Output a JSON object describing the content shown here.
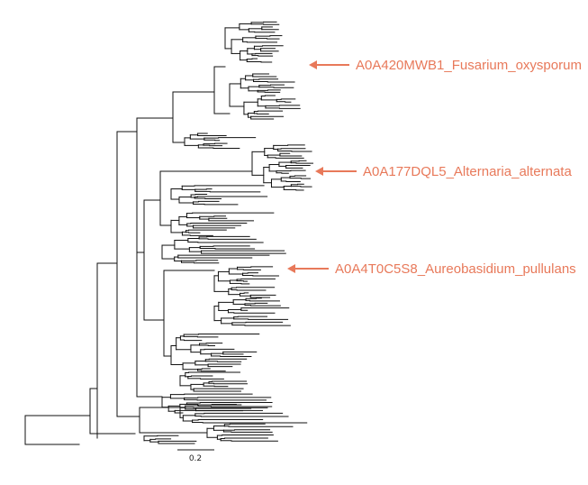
{
  "figure": {
    "accent_color": "#e8795a",
    "branch_color": "#111111",
    "annotations": [
      {
        "label": "A0A420MWB1_Fusarium_oxysporum"
      },
      {
        "label": "A0A177DQL5_Alternaria_alternata"
      },
      {
        "label": "A0A4T0C5S8_Aureobasidium_pullulans"
      }
    ],
    "scale_bar": {
      "value": 0.2,
      "label": "0.2"
    }
  }
}
